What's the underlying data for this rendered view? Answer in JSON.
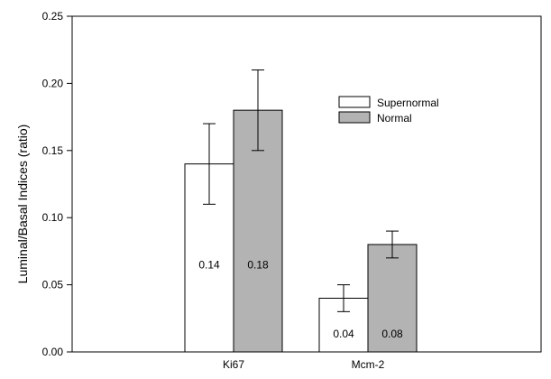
{
  "chart_data": {
    "type": "bar",
    "title": "",
    "xlabel": "",
    "ylabel": "Luminal/Basal Indices (ratio)",
    "ylim": [
      0,
      0.25
    ],
    "yticks": [
      "0.00",
      "0.05",
      "0.10",
      "0.15",
      "0.20",
      "0.25"
    ],
    "categories": [
      "Ki67",
      "Mcm-2"
    ],
    "series": [
      {
        "name": "Supernormal",
        "values": [
          0.14,
          0.04
        ],
        "errors": [
          0.03,
          0.01
        ],
        "labels": [
          "0.14",
          "0.04"
        ]
      },
      {
        "name": "Normal",
        "values": [
          0.18,
          0.08
        ],
        "errors": [
          0.03,
          0.01
        ],
        "labels": [
          "0.18",
          "0.08"
        ]
      }
    ],
    "colors": {
      "Supernormal": "#ffffff",
      "Normal": "#b3b3b3",
      "stroke": "#000000"
    },
    "legend": {
      "position": "top-right-inside"
    },
    "grid": false
  }
}
